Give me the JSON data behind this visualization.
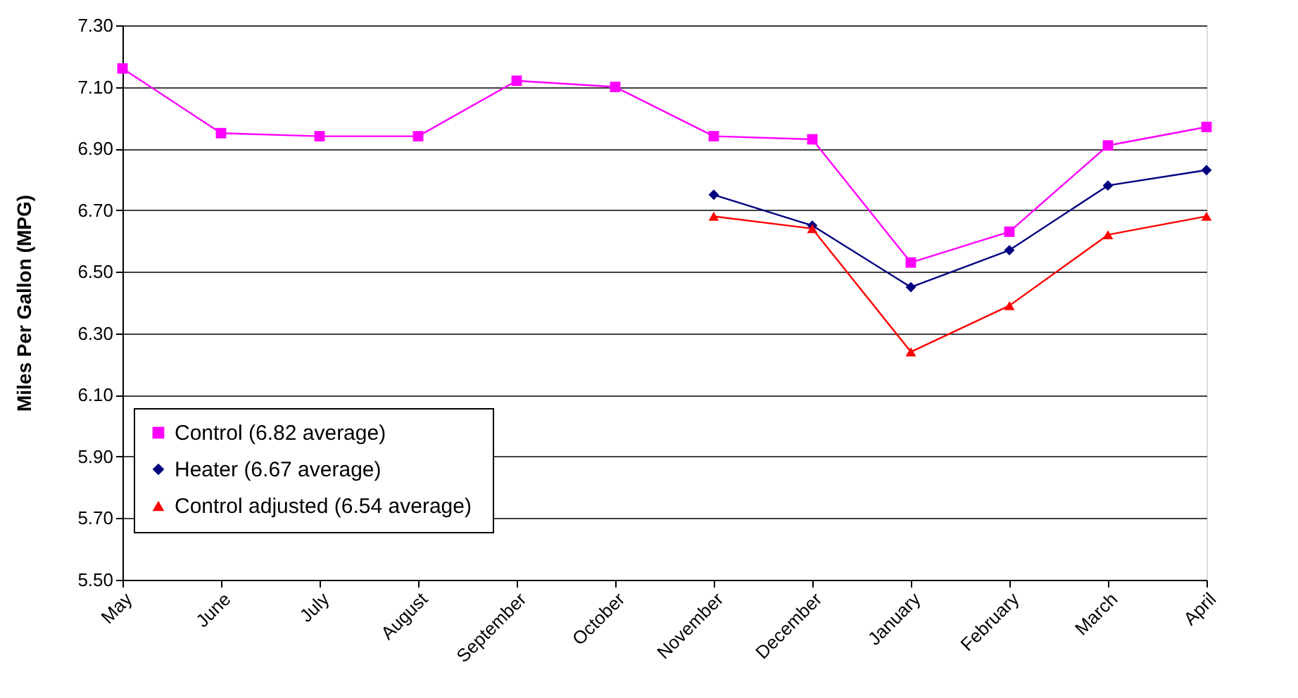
{
  "chart_data": {
    "type": "line",
    "ylabel": "Miles Per Gallon (MPG)",
    "categories": [
      "May",
      "June",
      "July",
      "August",
      "September",
      "October",
      "November",
      "December",
      "January",
      "February",
      "March",
      "April"
    ],
    "series": [
      {
        "name": "Control (6.82 average)",
        "color": "#ff00ff",
        "marker": "square",
        "values": [
          7.16,
          6.95,
          6.94,
          6.94,
          7.12,
          7.1,
          6.94,
          6.93,
          6.53,
          6.63,
          6.91,
          6.97
        ]
      },
      {
        "name": "Heater (6.67 average)",
        "color": "#000080",
        "marker": "diamond",
        "values": [
          null,
          null,
          null,
          null,
          null,
          null,
          6.75,
          6.65,
          6.45,
          6.57,
          6.78,
          6.83
        ]
      },
      {
        "name": "Control adjusted  (6.54 average)",
        "color": "#ff0000",
        "marker": "triangle",
        "values": [
          null,
          null,
          null,
          null,
          null,
          null,
          6.68,
          6.64,
          6.24,
          6.39,
          6.62,
          6.68
        ]
      }
    ],
    "ylim": [
      5.5,
      7.3
    ],
    "yticks": [
      {
        "value": 5.5,
        "label": "5.50"
      },
      {
        "value": 5.7,
        "label": "5.70"
      },
      {
        "value": 5.9,
        "label": "5.90"
      },
      {
        "value": 6.1,
        "label": "6.10"
      },
      {
        "value": 6.3,
        "label": "6.30"
      },
      {
        "value": 6.5,
        "label": "6.50"
      },
      {
        "value": 6.7,
        "label": "6.70"
      },
      {
        "value": 6.9,
        "label": "6.90"
      },
      {
        "value": 7.1,
        "label": "7.10"
      },
      {
        "value": 7.3,
        "label": "7.30"
      }
    ],
    "grid": "y",
    "legend": "bottom left",
    "line_style": "solid"
  }
}
